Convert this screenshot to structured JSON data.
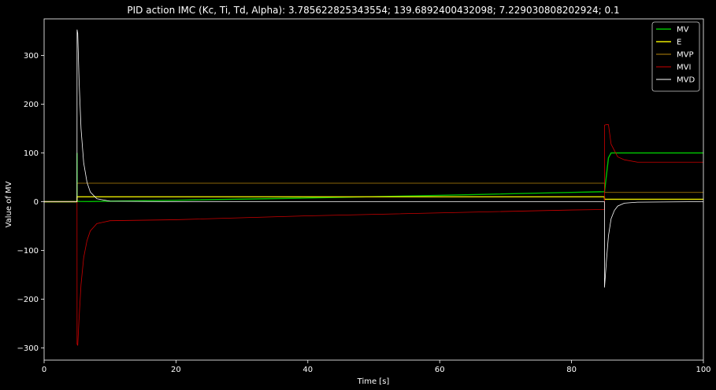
{
  "chart_data": {
    "type": "line",
    "title": "PID action IMC (Kc, Ti, Td, Alpha):  3.785622825343554;  139.6892400432098;  7.229030808202924;  0.1",
    "xlabel": "Time [s]",
    "ylabel": "Value of MV",
    "xlim": [
      0,
      100
    ],
    "ylim": [
      -325,
      375
    ],
    "xticks": [
      0,
      20,
      40,
      60,
      80,
      100
    ],
    "yticks": [
      -300,
      -200,
      -100,
      0,
      100,
      200,
      300
    ],
    "grid": false,
    "legend_position": "top-right",
    "background": "#000000",
    "series": [
      {
        "name": "MV",
        "color": "#00c000",
        "x": [
          0,
          4.99,
          5.0,
          5.01,
          5.3,
          7,
          10,
          20,
          40,
          60,
          80,
          84.99,
          85.0,
          85.3,
          85.6,
          86,
          100
        ],
        "y": [
          0,
          0,
          100,
          1.2,
          0.5,
          0.3,
          1.0,
          3.0,
          7.5,
          13.0,
          19.0,
          20.5,
          20.5,
          55,
          90,
          100,
          100
        ]
      },
      {
        "name": "E",
        "color": "#e8e800",
        "x": [
          0,
          4.99,
          5.0,
          84.99,
          85.0,
          100
        ],
        "y": [
          0,
          0,
          10,
          10,
          5,
          5
        ]
      },
      {
        "name": "MVP",
        "color": "#b8860b",
        "x": [
          0,
          4.99,
          5.0,
          84.99,
          85.0,
          100
        ],
        "y": [
          0,
          0,
          37.9,
          37.9,
          18.9,
          18.9
        ]
      },
      {
        "name": "MVI",
        "color": "#cc0000",
        "x": [
          0,
          4.99,
          5.0,
          5.1,
          5.3,
          5.6,
          6.0,
          6.5,
          7,
          8,
          10,
          20,
          40,
          60,
          80,
          84.99,
          85.0,
          85.3,
          85.6,
          86,
          87,
          88,
          90,
          100
        ],
        "y": [
          0,
          0,
          -292,
          -295,
          -240,
          -170,
          -115,
          -80,
          -60,
          -45,
          -39,
          -37,
          -29,
          -23,
          -17,
          -16,
          157,
          158,
          158,
          118,
          92,
          86,
          81,
          81
        ]
      },
      {
        "name": "MVD",
        "color": "#ffffff",
        "x": [
          0,
          4.99,
          5.0,
          5.1,
          5.3,
          5.6,
          6.0,
          6.5,
          7,
          8,
          10,
          20,
          40,
          60,
          80,
          84.99,
          85.0,
          85.3,
          85.6,
          86,
          86.5,
          87,
          88,
          90,
          100
        ],
        "y": [
          0,
          0,
          353,
          345,
          250,
          150,
          80,
          40,
          20,
          6,
          1,
          0,
          0,
          0,
          0,
          0,
          -176,
          -120,
          -70,
          -35,
          -18,
          -9,
          -3,
          -1,
          0
        ]
      }
    ]
  }
}
